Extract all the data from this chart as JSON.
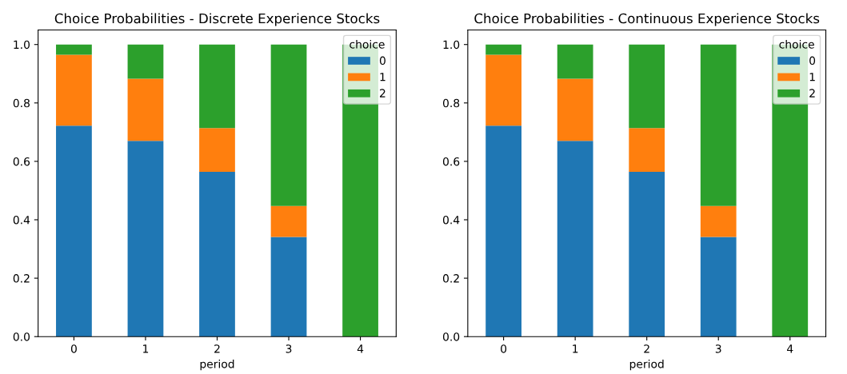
{
  "chart_data": [
    {
      "type": "bar",
      "title": "Choice Probabilities - Discrete Experience Stocks",
      "xlabel": "period",
      "legend_title": "choice",
      "categories": [
        "0",
        "1",
        "2",
        "3",
        "4"
      ],
      "stacked": true,
      "ylim": [
        0,
        1.05
      ],
      "yticks": [
        {
          "value": 0,
          "label": "0.0"
        },
        {
          "value": 0.2,
          "label": "0.2"
        },
        {
          "value": 0.4,
          "label": "0.4"
        },
        {
          "value": 0.6,
          "label": "0.6"
        },
        {
          "value": 0.8,
          "label": "0.8"
        },
        {
          "value": 1.0,
          "label": "1.0"
        }
      ],
      "legend": "top right",
      "grid": false,
      "series": [
        {
          "name": "0",
          "color": "#1f77b4",
          "values": [
            0.722,
            0.67,
            0.564,
            0.341,
            0
          ]
        },
        {
          "name": "1",
          "color": "#ff7f0e",
          "values": [
            0.243,
            0.213,
            0.15,
            0.106,
            0
          ]
        },
        {
          "name": "2",
          "color": "#2ca02c",
          "values": [
            0.035,
            0.117,
            0.286,
            0.553,
            1.0
          ]
        }
      ]
    },
    {
      "type": "bar",
      "title": "Choice Probabilities - Continuous Experience Stocks",
      "xlabel": "period",
      "legend_title": "choice",
      "categories": [
        "0",
        "1",
        "2",
        "3",
        "4"
      ],
      "stacked": true,
      "ylim": [
        0,
        1.05
      ],
      "yticks": [
        {
          "value": 0,
          "label": "0.0"
        },
        {
          "value": 0.2,
          "label": "0.2"
        },
        {
          "value": 0.4,
          "label": "0.4"
        },
        {
          "value": 0.6,
          "label": "0.6"
        },
        {
          "value": 0.8,
          "label": "0.8"
        },
        {
          "value": 1.0,
          "label": "1.0"
        }
      ],
      "legend": "top right",
      "grid": false,
      "series": [
        {
          "name": "0",
          "color": "#1f77b4",
          "values": [
            0.722,
            0.67,
            0.564,
            0.341,
            0
          ]
        },
        {
          "name": "1",
          "color": "#ff7f0e",
          "values": [
            0.243,
            0.213,
            0.15,
            0.106,
            0
          ]
        },
        {
          "name": "2",
          "color": "#2ca02c",
          "values": [
            0.035,
            0.117,
            0.286,
            0.553,
            1.0
          ]
        }
      ]
    }
  ]
}
